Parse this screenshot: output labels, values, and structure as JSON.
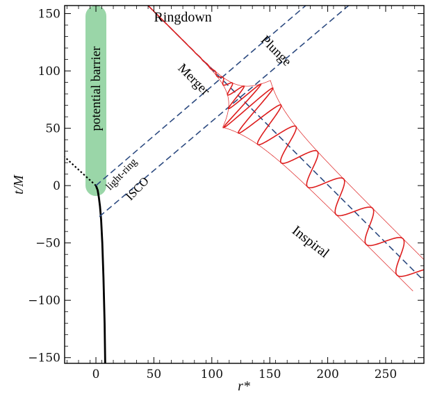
{
  "chart_data": {
    "type": "line",
    "xlabel": "r*",
    "ylabel": "t/M",
    "xlim": [
      -27,
      283
    ],
    "ylim": [
      -155,
      157
    ],
    "xticks": [
      0,
      50,
      100,
      150,
      200,
      250
    ],
    "yticks": [
      -150,
      -100,
      -50,
      0,
      50,
      100,
      150
    ],
    "xtick_labels": [
      "0",
      "50",
      "100",
      "150",
      "200",
      "250"
    ],
    "ytick_labels": [
      "−150",
      "−100",
      "−50",
      "0",
      "50",
      "100",
      "150"
    ],
    "grid": false,
    "series": [
      {
        "label": "worldline",
        "style": "solid",
        "color": "#000000",
        "x": [
          8,
          7.5,
          6.5,
          5.5,
          4.5,
          3.5,
          2.5,
          1.5,
          0
        ],
        "y": [
          -155,
          -120,
          -80,
          -50,
          -30,
          -18,
          -10,
          -4,
          0
        ]
      },
      {
        "label": "worldline (extension)",
        "style": "dotted",
        "color": "#000000",
        "x": [
          0,
          -27
        ],
        "y": [
          0,
          25
        ]
      },
      {
        "label": "light-ring line",
        "style": "dashed",
        "color": "#2c4a80",
        "x": [
          0,
          181
        ],
        "y": [
          0,
          157
        ]
      },
      {
        "label": "ISCO line",
        "style": "dashed",
        "color": "#2c4a80",
        "x": [
          3,
          218
        ],
        "y": [
          -27,
          157
        ]
      },
      {
        "label": "inspiral ray",
        "style": "dashed",
        "color": "#2c4a80",
        "x": [
          45,
          283
        ],
        "y": [
          157,
          -83
        ]
      }
    ],
    "waveform": {
      "color": "#dd1c1c",
      "ray_x": [
        45,
        283
      ],
      "ray_y": [
        157,
        -83
      ],
      "peak_x": 130,
      "peak_amplitude": 29,
      "inspiral_amplitude": 13,
      "wavelength_peak": 9,
      "wavelength_inspiral": 39,
      "ringdown_decay": 0.09
    },
    "potential_barrier": {
      "label": "potential barrier",
      "x_center": 0,
      "y_range": [
        0,
        157
      ],
      "color": "#8fd19e"
    },
    "annotations": [
      {
        "text": "Ringdown",
        "x": 75,
        "y": 143,
        "rotation": 0
      },
      {
        "text": "Plunge",
        "x": 153,
        "y": 115,
        "rotation": 45
      },
      {
        "text": "Merger",
        "x": 82,
        "y": 90,
        "rotation": 45
      },
      {
        "text": "light-ring",
        "x": 24,
        "y": 8,
        "rotation": -46
      },
      {
        "text": "ISCO",
        "x": 38,
        "y": -5,
        "rotation": -46
      },
      {
        "text": "Inspiral",
        "x": 183,
        "y": -52,
        "rotation": 38
      }
    ]
  }
}
